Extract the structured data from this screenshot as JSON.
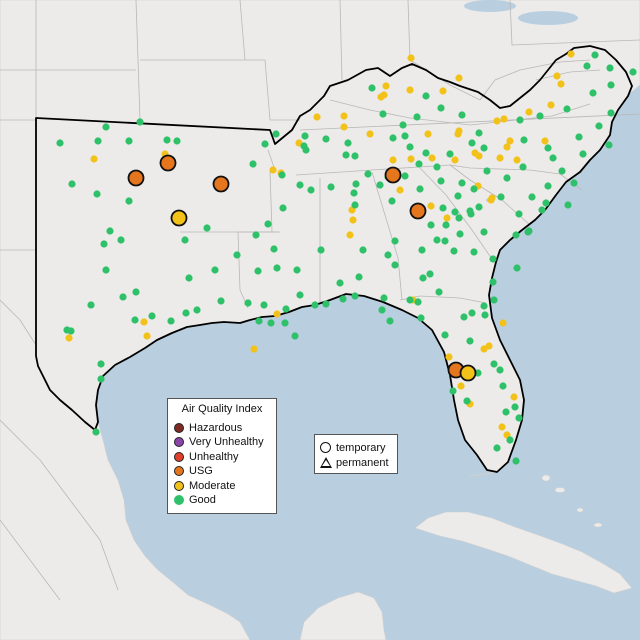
{
  "legend": {
    "title": "Air Quality Index",
    "categories": [
      {
        "label": "Hazardous",
        "color": "#7e2a22"
      },
      {
        "label": "Very Unhealthy",
        "color": "#8b44a8"
      },
      {
        "label": "Unhealthy",
        "color": "#e0402b"
      },
      {
        "label": "USG",
        "color": "#e5761d"
      },
      {
        "label": "Moderate",
        "color": "#f2c21b"
      },
      {
        "label": "Good",
        "color": "#2fc16a"
      }
    ]
  },
  "site_legend": {
    "temporary_label": "temporary",
    "permanent_label": "permanent"
  },
  "colors": {
    "water": "#b9cfe0",
    "land": "#ecebe9",
    "state_lines": "#b8b8b8",
    "region_outline": "#000000"
  },
  "monitors": {
    "usg_large": [
      [
        136,
        178
      ],
      [
        168,
        163
      ],
      [
        221,
        184
      ],
      [
        393,
        175
      ],
      [
        418,
        211
      ],
      [
        456,
        370
      ]
    ],
    "moderate_large": [
      [
        179,
        218
      ],
      [
        468,
        373
      ]
    ],
    "moderate_small": [
      [
        94,
        159
      ],
      [
        165,
        154
      ],
      [
        273,
        170
      ],
      [
        281,
        173
      ],
      [
        352,
        210
      ],
      [
        353,
        220
      ],
      [
        381,
        97
      ],
      [
        386,
        86
      ],
      [
        410,
        90
      ],
      [
        443,
        91
      ],
      [
        459,
        78
      ],
      [
        317,
        117
      ],
      [
        344,
        127
      ],
      [
        370,
        134
      ],
      [
        393,
        160
      ],
      [
        411,
        159
      ],
      [
        432,
        158
      ],
      [
        455,
        160
      ],
      [
        475,
        153
      ],
      [
        500,
        158
      ],
      [
        478,
        186
      ],
      [
        492,
        198
      ],
      [
        517,
        160
      ],
      [
        428,
        134
      ],
      [
        459,
        131
      ],
      [
        504,
        119
      ],
      [
        529,
        112
      ],
      [
        510,
        141
      ],
      [
        491,
        200
      ],
      [
        400,
        190
      ],
      [
        431,
        206
      ],
      [
        447,
        218
      ],
      [
        449,
        357
      ],
      [
        461,
        386
      ],
      [
        470,
        404
      ],
      [
        489,
        346
      ],
      [
        503,
        323
      ],
      [
        502,
        427
      ],
      [
        514,
        397
      ],
      [
        144,
        322
      ],
      [
        147,
        336
      ],
      [
        277,
        314
      ],
      [
        254,
        349
      ],
      [
        69,
        338
      ],
      [
        571,
        54
      ],
      [
        557,
        76
      ],
      [
        551,
        105
      ],
      [
        561,
        84
      ],
      [
        545,
        141
      ],
      [
        413,
        300
      ],
      [
        384,
        95
      ],
      [
        411,
        58
      ],
      [
        344,
        116
      ],
      [
        458,
        134
      ],
      [
        479,
        156
      ],
      [
        497,
        121
      ],
      [
        507,
        435
      ],
      [
        484,
        349
      ],
      [
        507,
        147
      ],
      [
        350,
        235
      ],
      [
        299,
        143
      ]
    ],
    "good_small": [
      [
        60,
        143
      ],
      [
        98,
        141
      ],
      [
        129,
        141
      ],
      [
        140,
        122
      ],
      [
        106,
        127
      ],
      [
        177,
        141
      ],
      [
        72,
        184
      ],
      [
        97,
        194
      ],
      [
        129,
        201
      ],
      [
        167,
        140
      ],
      [
        110,
        231
      ],
      [
        121,
        240
      ],
      [
        104,
        244
      ],
      [
        185,
        240
      ],
      [
        207,
        228
      ],
      [
        189,
        278
      ],
      [
        106,
        270
      ],
      [
        136,
        292
      ],
      [
        91,
        305
      ],
      [
        67,
        330
      ],
      [
        71,
        331
      ],
      [
        135,
        320
      ],
      [
        123,
        297
      ],
      [
        152,
        316
      ],
      [
        171,
        321
      ],
      [
        186,
        313
      ],
      [
        197,
        310
      ],
      [
        248,
        303
      ],
      [
        264,
        305
      ],
      [
        286,
        309
      ],
      [
        295,
        336
      ],
      [
        271,
        323
      ],
      [
        259,
        321
      ],
      [
        285,
        323
      ],
      [
        101,
        364
      ],
      [
        101,
        379
      ],
      [
        96,
        432
      ],
      [
        221,
        301
      ],
      [
        215,
        270
      ],
      [
        253,
        164
      ],
      [
        265,
        144
      ],
      [
        276,
        134
      ],
      [
        305,
        136
      ],
      [
        306,
        150
      ],
      [
        311,
        190
      ],
      [
        331,
        187
      ],
      [
        355,
        156
      ],
      [
        368,
        174
      ],
      [
        380,
        185
      ],
      [
        392,
        201
      ],
      [
        356,
        184
      ],
      [
        354,
        193
      ],
      [
        355,
        205
      ],
      [
        274,
        249
      ],
      [
        297,
        270
      ],
      [
        321,
        250
      ],
      [
        300,
        295
      ],
      [
        315,
        305
      ],
      [
        326,
        304
      ],
      [
        343,
        299
      ],
      [
        355,
        296
      ],
      [
        340,
        283
      ],
      [
        359,
        277
      ],
      [
        384,
        298
      ],
      [
        410,
        300
      ],
      [
        418,
        302
      ],
      [
        439,
        292
      ],
      [
        423,
        278
      ],
      [
        437,
        240
      ],
      [
        445,
        241
      ],
      [
        460,
        234
      ],
      [
        474,
        252
      ],
      [
        493,
        259
      ],
      [
        493,
        282
      ],
      [
        484,
        306
      ],
      [
        485,
        315
      ],
      [
        472,
        313
      ],
      [
        464,
        317
      ],
      [
        445,
        335
      ],
      [
        421,
        318
      ],
      [
        390,
        321
      ],
      [
        382,
        310
      ],
      [
        470,
        341
      ],
      [
        494,
        364
      ],
      [
        500,
        370
      ],
      [
        503,
        386
      ],
      [
        515,
        407
      ],
      [
        519,
        418
      ],
      [
        510,
        440
      ],
      [
        497,
        448
      ],
      [
        516,
        461
      ],
      [
        506,
        412
      ],
      [
        478,
        373
      ],
      [
        467,
        401
      ],
      [
        453,
        391
      ],
      [
        430,
        274
      ],
      [
        454,
        251
      ],
      [
        455,
        212
      ],
      [
        479,
        207
      ],
      [
        474,
        189
      ],
      [
        462,
        183
      ],
      [
        441,
        181
      ],
      [
        437,
        167
      ],
      [
        405,
        176
      ],
      [
        426,
        153
      ],
      [
        450,
        154
      ],
      [
        472,
        143
      ],
      [
        484,
        148
      ],
      [
        487,
        171
      ],
      [
        507,
        178
      ],
      [
        523,
        167
      ],
      [
        524,
        140
      ],
      [
        548,
        148
      ],
      [
        562,
        171
      ],
      [
        583,
        154
      ],
      [
        609,
        145
      ],
      [
        599,
        126
      ],
      [
        611,
        113
      ],
      [
        611,
        85
      ],
      [
        610,
        68
      ],
      [
        587,
        66
      ],
      [
        595,
        55
      ],
      [
        633,
        72
      ],
      [
        593,
        93
      ],
      [
        567,
        109
      ],
      [
        540,
        116
      ],
      [
        520,
        120
      ],
      [
        479,
        133
      ],
      [
        462,
        115
      ],
      [
        441,
        108
      ],
      [
        417,
        117
      ],
      [
        383,
        114
      ],
      [
        393,
        138
      ],
      [
        403,
        125
      ],
      [
        426,
        96
      ],
      [
        348,
        143
      ],
      [
        346,
        155
      ],
      [
        326,
        139
      ],
      [
        304,
        146
      ],
      [
        282,
        175
      ],
      [
        300,
        185
      ],
      [
        283,
        208
      ],
      [
        268,
        224
      ],
      [
        256,
        235
      ],
      [
        258,
        271
      ],
      [
        277,
        268
      ],
      [
        237,
        255
      ],
      [
        363,
        250
      ],
      [
        395,
        241
      ],
      [
        420,
        189
      ],
      [
        443,
        208
      ],
      [
        458,
        196
      ],
      [
        470,
        211
      ],
      [
        501,
        197
      ],
      [
        519,
        214
      ],
      [
        542,
        210
      ],
      [
        548,
        186
      ],
      [
        553,
        158
      ],
      [
        579,
        137
      ],
      [
        516,
        235
      ],
      [
        528,
        232
      ],
      [
        517,
        268
      ],
      [
        494,
        300
      ],
      [
        405,
        136
      ],
      [
        372,
        88
      ],
      [
        388,
        177
      ],
      [
        410,
        147
      ],
      [
        419,
        164
      ],
      [
        388,
        255
      ],
      [
        395,
        265
      ],
      [
        422,
        250
      ],
      [
        431,
        225
      ],
      [
        446,
        225
      ],
      [
        459,
        218
      ],
      [
        471,
        214
      ],
      [
        484,
        232
      ],
      [
        529,
        231
      ],
      [
        532,
        197
      ],
      [
        568,
        205
      ],
      [
        574,
        183
      ],
      [
        546,
        203
      ]
    ]
  }
}
